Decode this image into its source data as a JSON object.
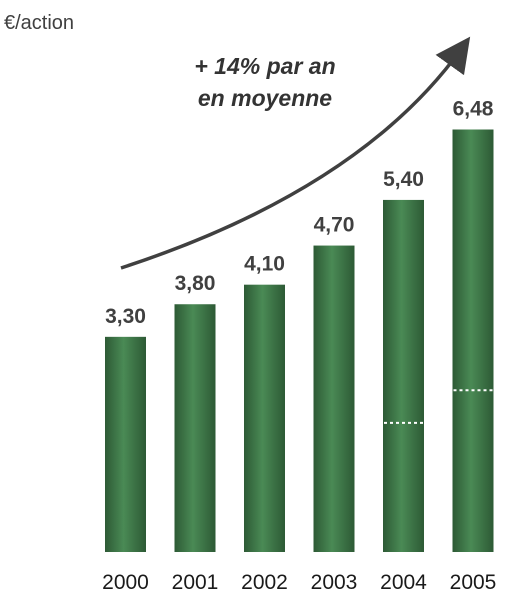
{
  "chart_data": {
    "type": "bar",
    "unit_label": "€/action",
    "categories": [
      "2000",
      "2001",
      "2002",
      "2003",
      "2004",
      "2005"
    ],
    "values": [
      3.3,
      3.8,
      4.1,
      4.7,
      5.4,
      6.48
    ],
    "value_labels": [
      "3,30",
      "3,80",
      "4,10",
      "4,70",
      "5,40",
      "6,48"
    ],
    "annotation": [
      "+ 14% par an",
      "en moyenne"
    ],
    "bar_color": "#2d5a35",
    "bar_highlight": "#4a8a55",
    "text_color": "#404040",
    "dashed_markers": [
      {
        "category": "2004",
        "value": 1.98
      },
      {
        "category": "2005",
        "value": 2.48
      }
    ],
    "ylim": [
      0,
      7.2
    ],
    "grid": false,
    "legend": "none"
  }
}
